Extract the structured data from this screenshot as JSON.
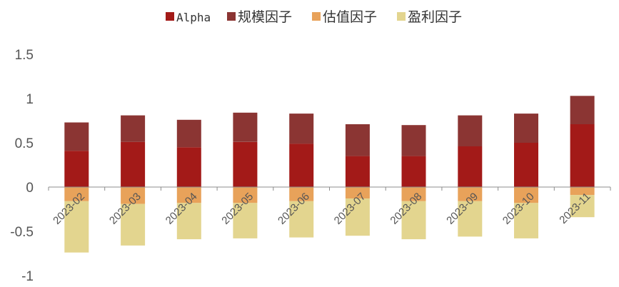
{
  "chart_data": {
    "type": "bar",
    "stacked": true,
    "title": "",
    "xlabel": "",
    "ylabel": "",
    "ylim": [
      -1,
      1.5
    ],
    "yticks": [
      1.5,
      1,
      0.5,
      0,
      -0.5,
      -1
    ],
    "ytick_labels": [
      "1.5",
      "1",
      "0.5",
      "0",
      "-0.5",
      "-1"
    ],
    "categories": [
      "2023-02",
      "2023-03",
      "2023-04",
      "2023-05",
      "2023-06",
      "2023-07",
      "2023-08",
      "2023-09",
      "2023-10",
      "2023-11"
    ],
    "legend_position": "top-center",
    "grid": false,
    "series": [
      {
        "name": "Alpha",
        "color": "#A31A18",
        "values": [
          0.41,
          0.51,
          0.45,
          0.51,
          0.49,
          0.35,
          0.35,
          0.46,
          0.5,
          0.71
        ]
      },
      {
        "name": "规模因子",
        "color": "#8B3533",
        "values": [
          0.32,
          0.3,
          0.31,
          0.33,
          0.34,
          0.36,
          0.35,
          0.35,
          0.33,
          0.32
        ]
      },
      {
        "name": "估值因子",
        "color": "#E8A25A",
        "values": [
          -0.16,
          -0.19,
          -0.18,
          -0.18,
          -0.16,
          -0.13,
          -0.16,
          -0.16,
          -0.18,
          -0.09
        ]
      },
      {
        "name": "盈利因子",
        "color": "#E3D58F",
        "values": [
          -0.58,
          -0.47,
          -0.41,
          -0.4,
          -0.41,
          -0.42,
          -0.43,
          -0.4,
          -0.4,
          -0.25
        ]
      }
    ]
  }
}
